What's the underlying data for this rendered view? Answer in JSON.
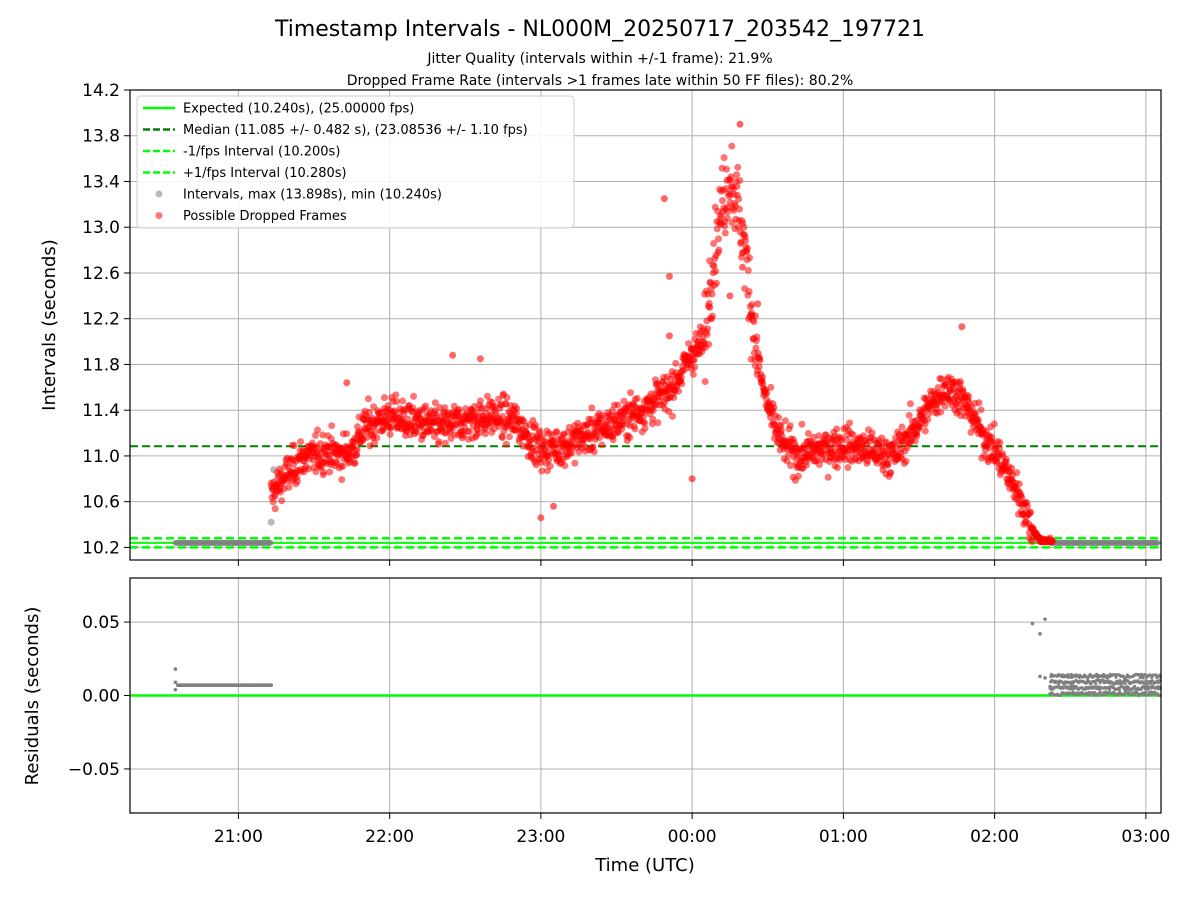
{
  "chart_data": [
    {
      "type": "scatter",
      "title": "Timestamp Intervals - NL000M_20250717_203542_197721",
      "subtitle_1": "Jitter Quality (intervals within +/-1 frame): 21.9%",
      "subtitle_2": "Dropped Frame Rate (intervals >1 frames late within 50 FF files): 80.2%",
      "xlabel": "",
      "ylabel": "Intervals (seconds)",
      "x_unit": "Time (UTC)",
      "xlim": [
        "20:17",
        "03:06"
      ],
      "ylim": [
        10.09,
        14.2
      ],
      "y_ticks": [
        "10.2",
        "10.6",
        "11.0",
        "11.4",
        "11.8",
        "12.2",
        "12.6",
        "13.0",
        "13.4",
        "13.8",
        "14.2"
      ],
      "grid": true,
      "legend_position": "upper-left",
      "legend": [
        "Expected (10.240s), (25.00000 fps)",
        "Median (11.085 +/- 0.482 s), (23.08536 +/- 1.10 fps)",
        "-1/fps Interval (10.200s)",
        "+1/fps Interval (10.280s)",
        "Intervals, max (13.898s), min (10.240s)",
        "Possible Dropped Frames"
      ],
      "reference_lines": {
        "expected": 10.24,
        "median": 11.085,
        "minus_1fps": 10.2,
        "plus_1fps": 10.28
      },
      "series": [
        {
          "name": "Intervals, max (13.898s), min (10.240s)",
          "kind": "normal-intervals",
          "points": [
            [
              "20:35",
              10.24
            ],
            [
              "20:45",
              10.24
            ],
            [
              "20:55",
              10.24
            ],
            [
              "21:05",
              10.24
            ],
            [
              "21:13",
              10.24
            ],
            [
              "21:13",
              10.42
            ],
            [
              "21:14",
              10.88
            ],
            [
              "02:22",
              10.24
            ],
            [
              "02:35",
              10.24
            ],
            [
              "02:45",
              10.24
            ],
            [
              "02:55",
              10.24
            ],
            [
              "03:05",
              10.24
            ]
          ]
        },
        {
          "name": "Possible Dropped Frames",
          "kind": "trend",
          "note_points_are_trend_samples": true,
          "points": [
            [
              "21:13",
              10.65
            ],
            [
              "21:16",
              10.75
            ],
            [
              "21:20",
              10.85
            ],
            [
              "21:25",
              10.98
            ],
            [
              "21:30",
              11.0
            ],
            [
              "21:35",
              11.05
            ],
            [
              "21:40",
              11.0
            ],
            [
              "21:45",
              11.05
            ],
            [
              "21:50",
              11.25
            ],
            [
              "22:00",
              11.35
            ],
            [
              "22:10",
              11.3
            ],
            [
              "22:20",
              11.25
            ],
            [
              "22:30",
              11.3
            ],
            [
              "22:40",
              11.35
            ],
            [
              "22:50",
              11.3
            ],
            [
              "23:00",
              11.05
            ],
            [
              "23:10",
              11.1
            ],
            [
              "23:20",
              11.2
            ],
            [
              "23:30",
              11.3
            ],
            [
              "23:40",
              11.4
            ],
            [
              "23:50",
              11.55
            ],
            [
              "23:55",
              11.7
            ],
            [
              "00:00",
              11.9
            ],
            [
              "00:05",
              12.0
            ],
            [
              "00:08",
              12.7
            ],
            [
              "00:12",
              13.2
            ],
            [
              "00:15",
              13.45
            ],
            [
              "00:18",
              13.2
            ],
            [
              "00:21",
              12.8
            ],
            [
              "00:25",
              12.0
            ],
            [
              "00:28",
              11.6
            ],
            [
              "00:32",
              11.3
            ],
            [
              "00:36",
              11.1
            ],
            [
              "00:42",
              11.0
            ],
            [
              "00:50",
              11.05
            ],
            [
              "01:00",
              11.1
            ],
            [
              "01:10",
              11.05
            ],
            [
              "01:20",
              11.0
            ],
            [
              "01:30",
              11.3
            ],
            [
              "01:35",
              11.45
            ],
            [
              "01:40",
              11.6
            ],
            [
              "01:45",
              11.55
            ],
            [
              "01:50",
              11.4
            ],
            [
              "01:55",
              11.2
            ],
            [
              "02:00",
              11.05
            ],
            [
              "02:05",
              10.85
            ],
            [
              "02:10",
              10.65
            ],
            [
              "02:14",
              10.4
            ],
            [
              "02:18",
              10.26
            ],
            [
              "02:23",
              10.25
            ]
          ],
          "outliers": [
            [
              "23:49",
              13.25
            ],
            [
              "23:51",
              12.57
            ],
            [
              "00:19",
              13.9
            ],
            [
              "00:07",
              12.3
            ],
            [
              "00:15",
              12.4
            ],
            [
              "00:20",
              12.65
            ],
            [
              "23:51",
              12.05
            ],
            [
              "01:47",
              12.13
            ],
            [
              "22:25",
              11.88
            ],
            [
              "22:36",
              11.85
            ],
            [
              "21:43",
              11.64
            ],
            [
              "23:00",
              10.46
            ],
            [
              "23:05",
              10.56
            ],
            [
              "00:00",
              10.8
            ],
            [
              "00:26",
              12.33
            ]
          ]
        }
      ]
    },
    {
      "type": "scatter",
      "title": "",
      "ylabel": "Residuals (seconds)",
      "xlabel": "Time (UTC)",
      "xlim": [
        "20:17",
        "03:06"
      ],
      "ylim": [
        -0.08,
        0.08
      ],
      "y_ticks": [
        "−0.05",
        "0.00",
        "0.05"
      ],
      "x_ticks": [
        "21:00",
        "22:00",
        "23:00",
        "00:00",
        "01:00",
        "02:00",
        "03:00"
      ],
      "grid": true,
      "reference_lines": {
        "zero": 0.0
      },
      "series": [
        {
          "name": "",
          "points": [
            [
              "20:35",
              0.018
            ],
            [
              "20:35",
              0.009
            ],
            [
              "20:35",
              0.004
            ],
            [
              "20:36",
              0.007
            ],
            [
              "20:45",
              0.007
            ],
            [
              "20:55",
              0.007
            ],
            [
              "21:05",
              0.007
            ],
            [
              "21:13",
              0.007
            ],
            [
              "02:15",
              0.049
            ],
            [
              "02:20",
              0.052
            ],
            [
              "02:18",
              0.042
            ],
            [
              "02:18",
              0.013
            ],
            [
              "02:20",
              0.012
            ],
            [
              "02:22",
              0.006
            ],
            [
              "02:22",
              0.001
            ]
          ],
          "band": {
            "from": "02:22",
            "to": "03:06",
            "min": 0.0,
            "max": 0.016
          }
        }
      ]
    }
  ]
}
